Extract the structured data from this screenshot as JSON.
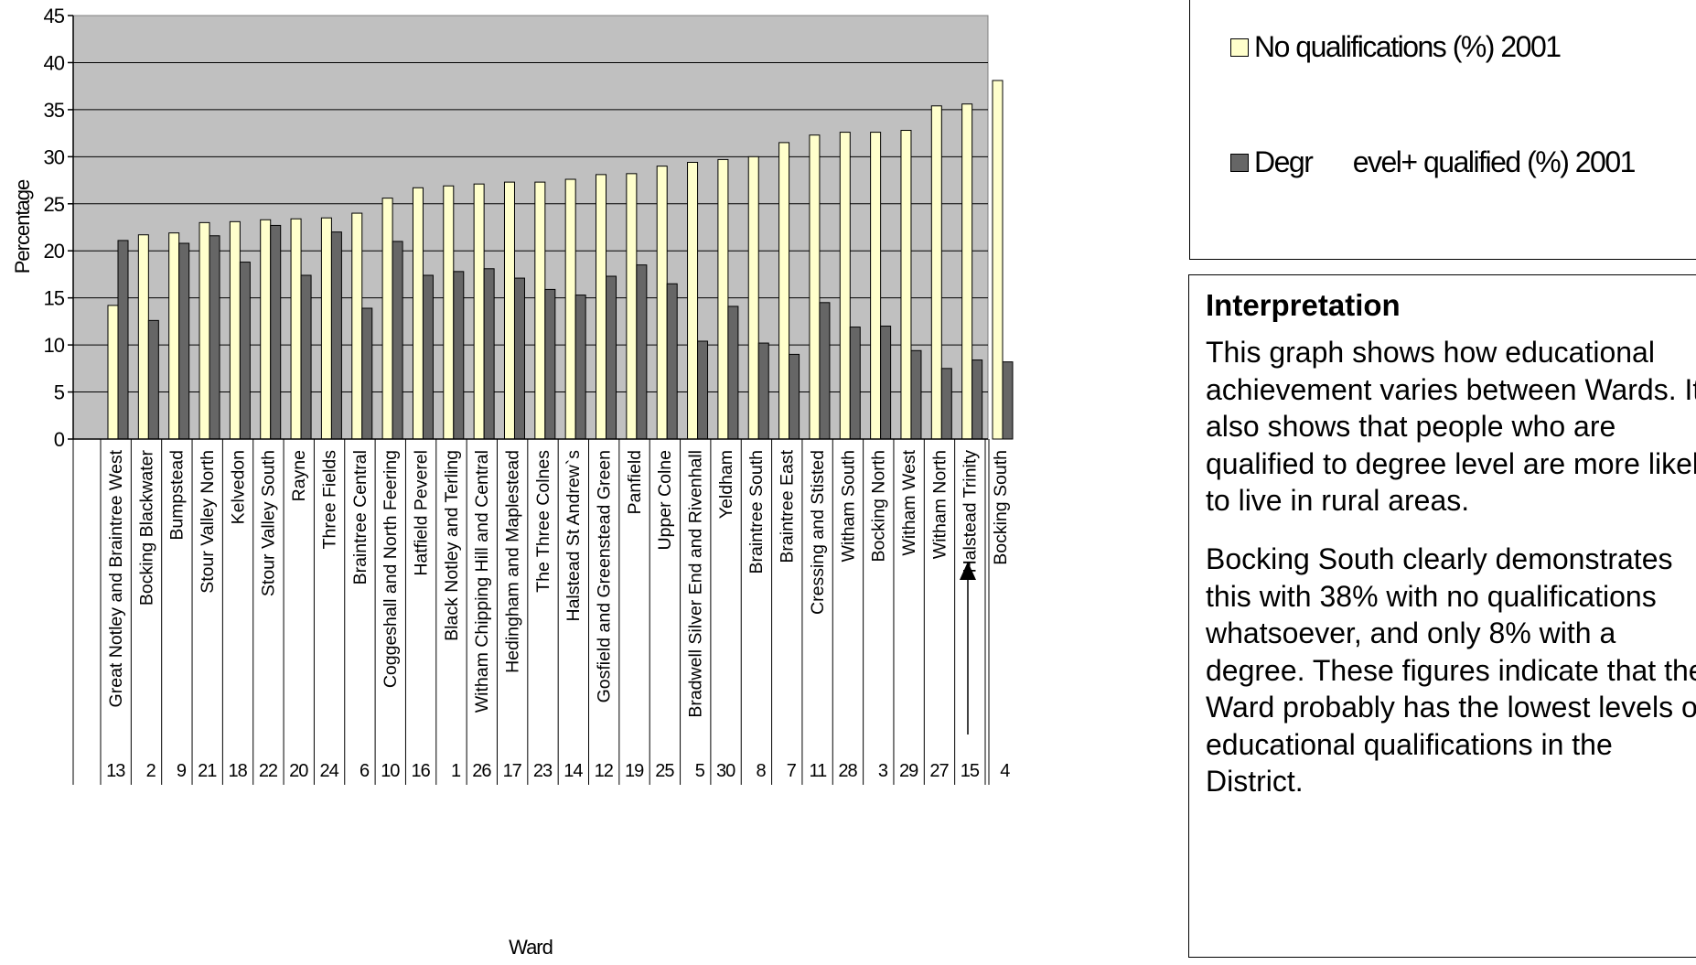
{
  "chart_data": {
    "type": "bar",
    "title": "",
    "xlabel": "Ward",
    "ylabel": "Percentage",
    "ylim": [
      0,
      45
    ],
    "yticks": [
      0,
      5,
      10,
      15,
      20,
      25,
      30,
      35,
      40,
      45
    ],
    "grid": true,
    "legend_position": "top-right",
    "categories": [
      "Great Notley and Braintree West",
      "Bocking Blackwater",
      "Bumpstead",
      "Stour Valley North",
      "Kelvedon",
      "Stour Valley South",
      "Rayne",
      "Three Fields",
      "Braintree Central",
      "Coggeshall and North Feering",
      "Hatfield Peverel",
      "Black Notley and Terling",
      "Witham Chipping Hill and Central",
      "Hedingham and Maplestead",
      "The Three Colnes",
      "Halstead St Andrew`s",
      "Gosfield and Greenstead Green",
      "Panfield",
      "Upper Colne",
      "Bradwell Silver End and Rivenhall",
      "Yeldham",
      "Braintree South",
      "Braintree East",
      "Cressing and Stisted",
      "Witham South",
      "Bocking North",
      "Witham West",
      "Witham North",
      "Halstead Trinity",
      "Bocking South"
    ],
    "ward_numbers": [
      "13",
      "2",
      "9",
      "21",
      "18",
      "22",
      "20",
      "24",
      "6",
      "10",
      "16",
      "1",
      "26",
      "17",
      "23",
      "14",
      "12",
      "19",
      "25",
      "5",
      "30",
      "8",
      "7",
      "11",
      "28",
      "3",
      "29",
      "27",
      "15",
      "4"
    ],
    "series": [
      {
        "name": "No qualifications (%) 2001",
        "color": "#ffffcc",
        "values": [
          14.2,
          21.7,
          21.9,
          23.0,
          23.1,
          23.3,
          23.4,
          23.5,
          24.0,
          25.6,
          26.7,
          26.9,
          27.1,
          27.3,
          27.3,
          27.6,
          28.1,
          28.2,
          29.0,
          29.4,
          29.7,
          30.0,
          31.5,
          32.3,
          32.6,
          32.6,
          32.8,
          35.4,
          35.6,
          38.1
        ]
      },
      {
        "name": "Degr      evel+ qualified (%) 2001",
        "color": "#666666",
        "values": [
          21.1,
          12.6,
          20.8,
          21.6,
          18.8,
          22.7,
          17.4,
          22.0,
          13.9,
          21.0,
          17.4,
          17.8,
          18.1,
          17.1,
          15.9,
          15.3,
          17.3,
          18.5,
          16.5,
          10.4,
          14.1,
          10.2,
          9.0,
          14.5,
          11.9,
          12.0,
          9.4,
          7.5,
          8.4,
          8.2
        ]
      }
    ],
    "plot_background": "#c0c0c0"
  },
  "interpretation": {
    "title": "Interpretation",
    "paragraph1": "This graph shows how educational achievement varies between Wards. It also shows that people who are qualified to degree level are more likely to live in rural areas.",
    "paragraph2": "Bocking South clearly demonstrates this with 38% with no qualifications whatsoever, and only 8% with a degree. These figures indicate that the Ward probably has the lowest levels of educational qualifications in the District."
  }
}
